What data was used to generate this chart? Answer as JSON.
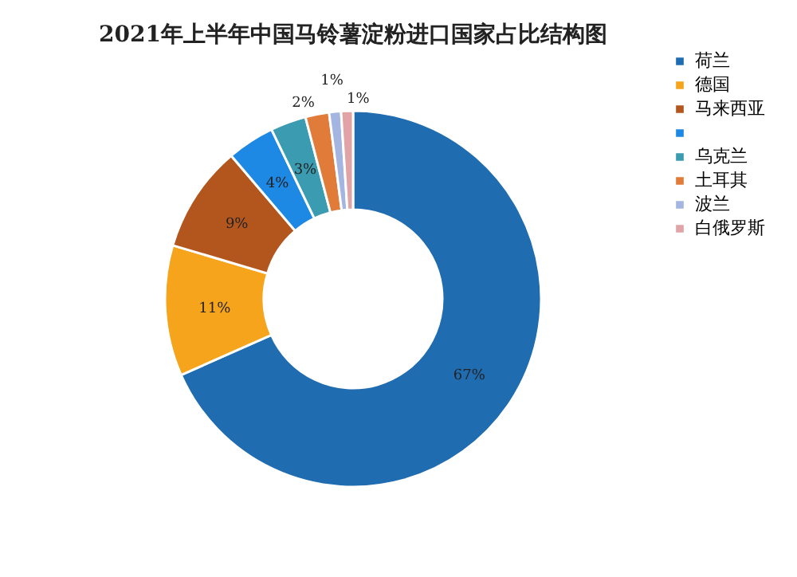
{
  "chart_data": {
    "type": "donut",
    "title": "2021年上半年中国马铃薯淀粉进口国家占比结构图",
    "categories": [
      "荷兰",
      "德国",
      "马来西亚",
      null,
      "乌克兰",
      "土耳其",
      "波兰",
      "白俄罗斯"
    ],
    "values": [
      67,
      11,
      9,
      4,
      3,
      2,
      1,
      1
    ],
    "colors": [
      "#1f6cb0",
      "#f5a41c",
      "#b3561e",
      "#1e88e5",
      "#3b9bb0",
      "#e07b39",
      "#a3b5e0",
      "#e0a3a6"
    ],
    "value_labels": [
      "67%",
      "11%",
      "9%",
      "4%",
      "3%",
      "2%",
      "1%",
      "1%"
    ],
    "legend": "right"
  }
}
